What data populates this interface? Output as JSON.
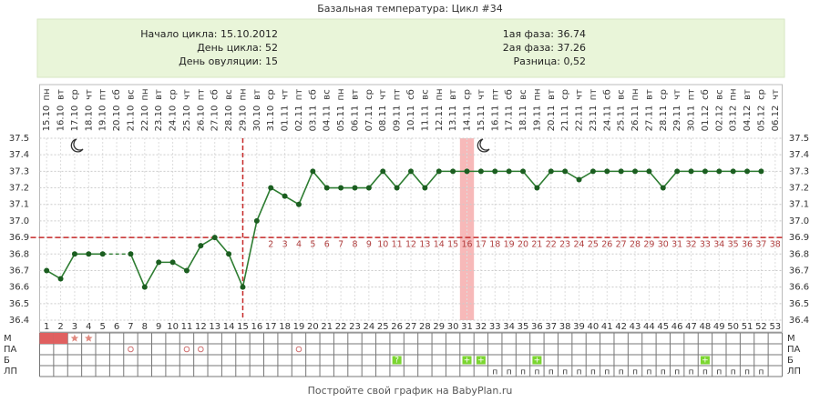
{
  "title": "Базальная температура: Цикл #34",
  "info": {
    "left": [
      "Начало цикла: 15.10.2012",
      "День цикла: 52",
      "День овуляции: 15"
    ],
    "right": [
      "1ая фаза: 36.74",
      "2ая фаза: 37.26",
      "Разница: 0,52"
    ]
  },
  "chart_data": {
    "type": "line",
    "weekdays": [
      "пн",
      "вт",
      "ср",
      "чт",
      "пт",
      "сб",
      "вс",
      "пн",
      "вт",
      "ср",
      "чт",
      "пт",
      "сб",
      "вс",
      "пн",
      "вт",
      "ср",
      "чт",
      "пт",
      "сб",
      "вс",
      "пн",
      "вт",
      "ср",
      "чт",
      "пт",
      "сб",
      "вс",
      "пн",
      "вт",
      "ср",
      "чт",
      "пт",
      "сб",
      "вс",
      "пн",
      "вт",
      "ср",
      "чт",
      "пт",
      "сб",
      "вс",
      "пн",
      "вт",
      "ср",
      "чт",
      "пт",
      "сб",
      "вс",
      "пн",
      "вт",
      "ср",
      "чт"
    ],
    "dates": [
      "15.10",
      "16.10",
      "17.10",
      "18.10",
      "19.10",
      "20.10",
      "21.10",
      "22.10",
      "23.10",
      "24.10",
      "25.10",
      "26.10",
      "27.10",
      "28.10",
      "29.10",
      "30.10",
      "31.10",
      "01.11",
      "02.11",
      "03.11",
      "04.11",
      "05.11",
      "06.11",
      "07.11",
      "08.11",
      "09.11",
      "10.11",
      "11.11",
      "12.11",
      "13.11",
      "14.11",
      "15.11",
      "16.11",
      "17.11",
      "18.11",
      "19.11",
      "20.11",
      "21.11",
      "22.11",
      "23.11",
      "24.11",
      "25.11",
      "26.11",
      "27.11",
      "28.11",
      "29.11",
      "30.11",
      "01.12",
      "02.12",
      "03.12",
      "04.12",
      "05.12",
      "06.12"
    ],
    "x": [
      1,
      2,
      3,
      4,
      5,
      6,
      7,
      8,
      9,
      10,
      11,
      12,
      13,
      14,
      15,
      16,
      17,
      18,
      19,
      20,
      21,
      22,
      23,
      24,
      25,
      26,
      27,
      28,
      29,
      30,
      31,
      32,
      33,
      34,
      35,
      36,
      37,
      38,
      39,
      40,
      41,
      42,
      43,
      44,
      45,
      46,
      47,
      48,
      49,
      50,
      51,
      52,
      53
    ],
    "values": [
      36.7,
      36.65,
      36.8,
      36.8,
      36.8,
      null,
      36.8,
      36.6,
      36.75,
      36.75,
      36.7,
      36.85,
      36.9,
      36.8,
      36.6,
      37.0,
      37.2,
      37.15,
      37.1,
      37.3,
      37.2,
      37.2,
      37.2,
      37.2,
      37.3,
      37.2,
      37.3,
      37.2,
      37.3,
      37.3,
      37.3,
      37.3,
      37.3,
      37.3,
      37.3,
      37.2,
      37.3,
      37.3,
      37.25,
      37.3,
      37.3,
      37.3,
      37.3,
      37.3,
      37.2,
      37.3,
      37.3,
      37.3,
      37.3,
      37.3,
      37.3,
      37.3,
      null
    ],
    "color": "#2e7d32",
    "ylim": [
      36.4,
      37.5
    ],
    "yticks": [
      36.4,
      36.5,
      36.6,
      36.7,
      36.8,
      36.9,
      {
        "value": 37,
        "label": "37.0"
      },
      37.1,
      37.2,
      37.3,
      37.4,
      37.5
    ],
    "grid": true,
    "coverline": 36.9,
    "ovulation_day": 15,
    "highlight_day": 31,
    "phase_days": {
      "first_day": 17,
      "labels": [
        2,
        3,
        4,
        5,
        6,
        7,
        8,
        9,
        10,
        11,
        12,
        13,
        14,
        15,
        16,
        17,
        18,
        19,
        20,
        21,
        22,
        23,
        24,
        25,
        26,
        27,
        28,
        29,
        30,
        31,
        32,
        33,
        34,
        35,
        36,
        37,
        38
      ]
    },
    "rows": [
      {
        "label": "М",
        "items": [
          {
            "day": 1,
            "kind": "fill"
          },
          {
            "day": 2,
            "kind": "fill"
          },
          {
            "day": 3,
            "kind": "star"
          },
          {
            "day": 4,
            "kind": "star"
          }
        ]
      },
      {
        "label": "ПА",
        "items": [
          {
            "day": 7,
            "kind": "circle"
          },
          {
            "day": 11,
            "kind": "circle"
          },
          {
            "day": 12,
            "kind": "circle"
          },
          {
            "day": 19,
            "kind": "circle"
          }
        ]
      },
      {
        "label": "Б",
        "items": [
          {
            "day": 26,
            "kind": "green",
            "text": "?"
          },
          {
            "day": 31,
            "kind": "green",
            "text": "+"
          },
          {
            "day": 32,
            "kind": "green",
            "text": "+"
          },
          {
            "day": 36,
            "kind": "green",
            "text": "+"
          },
          {
            "day": 48,
            "kind": "green",
            "text": "+"
          }
        ]
      },
      {
        "label": "ЛП",
        "items": [
          {
            "day": 33,
            "text": "п"
          },
          {
            "day": 34,
            "text": "п"
          },
          {
            "day": 35,
            "text": "п"
          },
          {
            "day": 36,
            "text": "п"
          },
          {
            "day": 37,
            "text": "п"
          },
          {
            "day": 38,
            "text": "п"
          },
          {
            "day": 39,
            "text": "п"
          },
          {
            "day": 40,
            "text": "п"
          },
          {
            "day": 41,
            "text": "п"
          },
          {
            "day": 42,
            "text": "п"
          },
          {
            "day": 43,
            "text": "п"
          },
          {
            "day": 44,
            "text": "п"
          },
          {
            "day": 45,
            "text": "п"
          },
          {
            "day": 46,
            "text": "п"
          },
          {
            "day": 47,
            "text": "п"
          },
          {
            "day": 48,
            "text": "п"
          },
          {
            "day": 49,
            "text": "п"
          },
          {
            "day": 50,
            "text": "п"
          },
          {
            "day": 51,
            "text": "п"
          },
          {
            "day": 52,
            "text": "п"
          }
        ]
      }
    ]
  },
  "footer": "Постройте свой график на BabyPlan.ru"
}
